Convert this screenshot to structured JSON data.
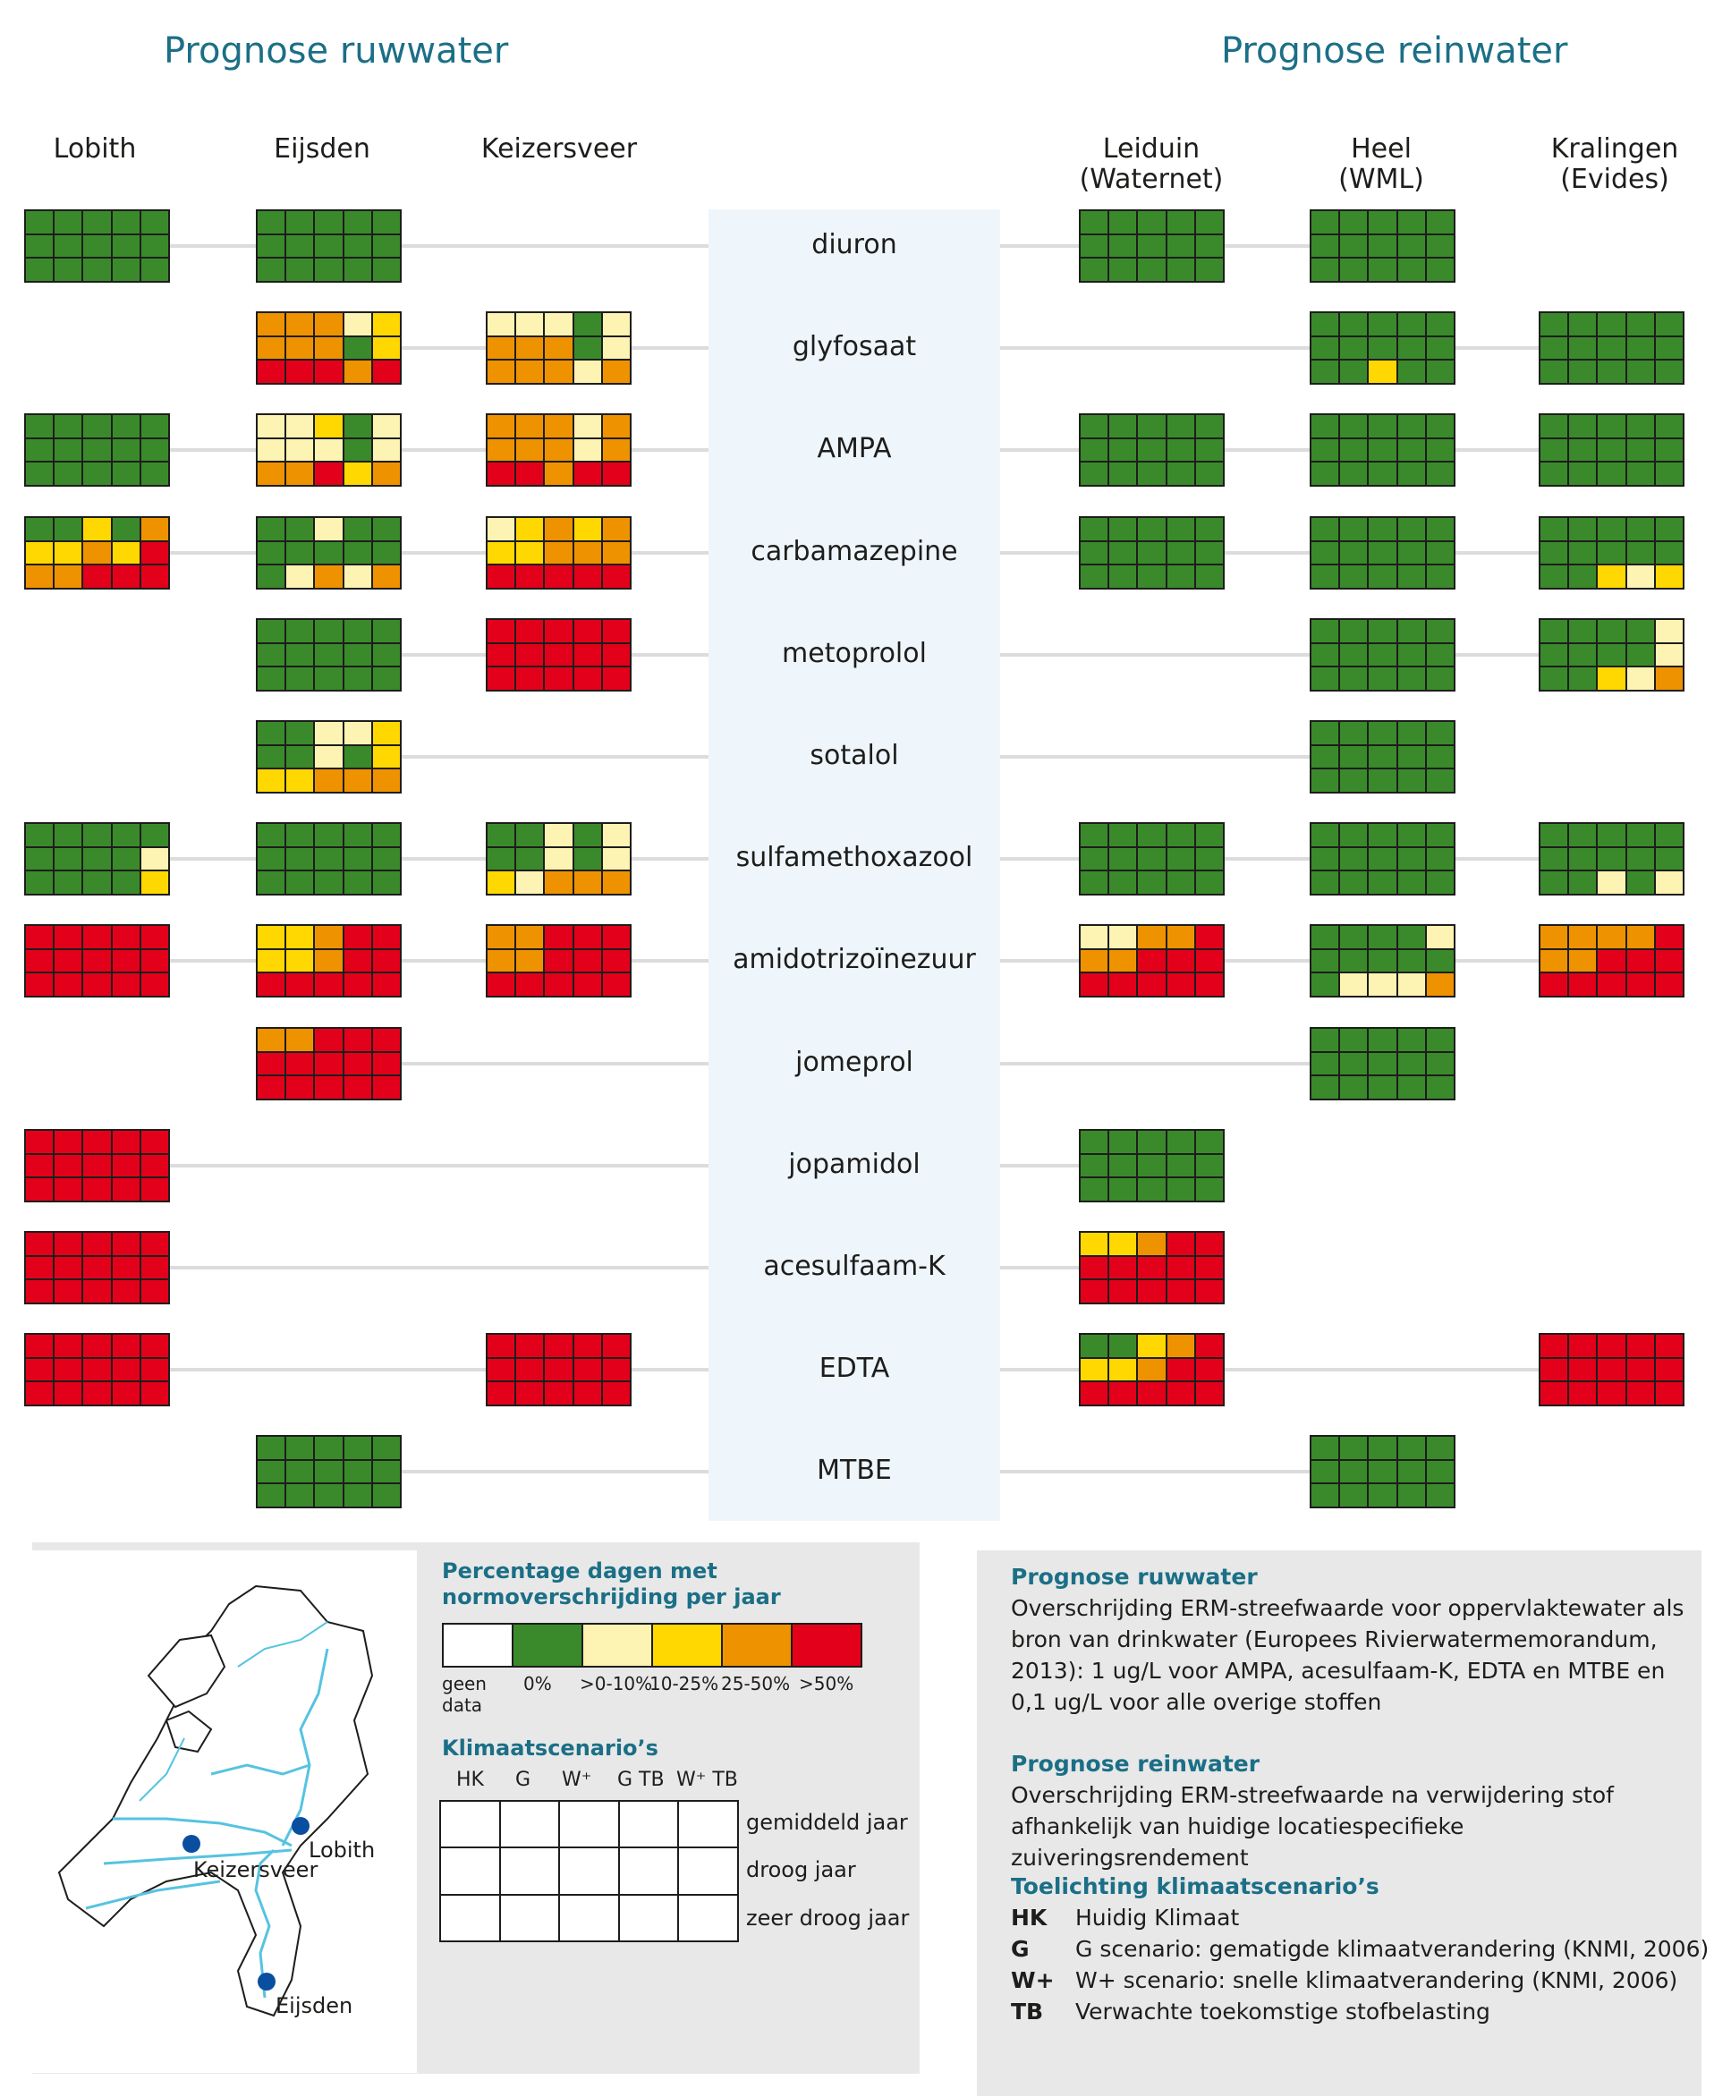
{
  "headers": {
    "ruwwater": "Prognose ruwwater",
    "reinwater": "Prognose reinwater"
  },
  "locations": {
    "lobith": [
      "Lobith"
    ],
    "eijsden": [
      "Eijsden"
    ],
    "keizersveer": [
      "Keizersveer"
    ],
    "leiduin": [
      "Leiduin",
      "(Waternet)"
    ],
    "heel": [
      "Heel",
      "(WML)"
    ],
    "kralingen": [
      "Kralingen",
      "(Evides)"
    ]
  },
  "colors": {
    "W": "#ffffff",
    "G": "#3a8a2c",
    "L": "#fdf3b3",
    "Y": "#fed800",
    "O": "#ef9200",
    "R": "#e3001b"
  },
  "chart_data": {
    "type": "heatmap",
    "rows": [
      "diuron",
      "glyfosaat",
      "AMPA",
      "carbamazepine",
      "metoprolol",
      "sotalol",
      "sulfamethoxazool",
      "amidotrizoïnezuur",
      "jomeprol",
      "jopamidol",
      "acesulfaam-K",
      "EDTA",
      "MTBE"
    ],
    "grid_columns": [
      "HK",
      "G",
      "W⁺",
      "G TB",
      "W⁺ TB"
    ],
    "grid_rows": [
      "gemiddeld jaar",
      "droog jaar",
      "zeer droog jaar"
    ],
    "categories": {
      "W": "geen data",
      "G": "0%",
      "L": ">0-10%",
      "Y": "10-25%",
      "O": "25-50%",
      "R": ">50%"
    },
    "locations": [
      "Lobith",
      "Eijsden",
      "Keizersveer",
      "Leiduin (Waternet)",
      "Heel (WML)",
      "Kralingen (Evides)"
    ],
    "grids": {
      "diuron": {
        "Lobith": [
          "GGGGG",
          "GGGGG",
          "GGGGG"
        ],
        "Eijsden": [
          "GGGGG",
          "GGGGG",
          "GGGGG"
        ],
        "Leiduin": [
          "GGGGG",
          "GGGGG",
          "GGGGG"
        ],
        "Heel": [
          "GGGGG",
          "GGGGG",
          "GGGGG"
        ]
      },
      "glyfosaat": {
        "Eijsden": [
          "OOOLY",
          "OOOGY",
          "RRROR"
        ],
        "Keizersveer": [
          "LLLGL",
          "OOOGL",
          "OOOLO"
        ],
        "Heel": [
          "GGGGG",
          "GGGGG",
          "GGYGG"
        ],
        "Kralingen": [
          "GGGGG",
          "GGGGG",
          "GGGGG"
        ]
      },
      "AMPA": {
        "Lobith": [
          "GGGGG",
          "GGGGG",
          "GGGGG"
        ],
        "Eijsden": [
          "LLYGL",
          "LLLGL",
          "OORYO"
        ],
        "Keizersveer": [
          "OOOLO",
          "OOOLO",
          "RRORR"
        ],
        "Leiduin": [
          "GGGGG",
          "GGGGG",
          "GGGGG"
        ],
        "Heel": [
          "GGGGG",
          "GGGGG",
          "GGGGG"
        ],
        "Kralingen": [
          "GGGGG",
          "GGGGG",
          "GGGGG"
        ]
      },
      "carbamazepine": {
        "Lobith": [
          "GGYGO",
          "YYOYR",
          "OORRR"
        ],
        "Eijsden": [
          "GGLGG",
          "GGGGG",
          "GLOLO"
        ],
        "Keizersveer": [
          "LYOYO",
          "YYOOO",
          "RRRRR"
        ],
        "Leiduin": [
          "GGGGG",
          "GGGGG",
          "GGGGG"
        ],
        "Heel": [
          "GGGGG",
          "GGGGG",
          "GGGGG"
        ],
        "Kralingen": [
          "GGGGG",
          "GGGGG",
          "GGYLY"
        ]
      },
      "metoprolol": {
        "Eijsden": [
          "GGGGG",
          "GGGGG",
          "GGGGG"
        ],
        "Keizersveer": [
          "RRRRR",
          "RRRRR",
          "RRRRR"
        ],
        "Heel": [
          "GGGGG",
          "GGGGG",
          "GGGGG"
        ],
        "Kralingen": [
          "GGGGL",
          "GGGGL",
          "GGYLO"
        ]
      },
      "sotalol": {
        "Eijsden": [
          "GGLLY",
          "GGLGY",
          "YYOOO"
        ],
        "Heel": [
          "GGGGG",
          "GGGGG",
          "GGGGG"
        ]
      },
      "sulfamethoxazool": {
        "Lobith": [
          "GGGGG",
          "GGGGL",
          "GGGGY"
        ],
        "Eijsden": [
          "GGGGG",
          "GGGGG",
          "GGGGG"
        ],
        "Keizersveer": [
          "GGLGL",
          "GGLGL",
          "YLOOO"
        ],
        "Leiduin": [
          "GGGGG",
          "GGGGG",
          "GGGGG"
        ],
        "Heel": [
          "GGGGG",
          "GGGGG",
          "GGGGG"
        ],
        "Kralingen": [
          "GGGGG",
          "GGGGG",
          "GGLGL"
        ]
      },
      "amidotrizoïnezuur": {
        "Lobith": [
          "RRRRR",
          "RRRRR",
          "RRRRR"
        ],
        "Eijsden": [
          "YYORR",
          "YYORR",
          "RRRRR"
        ],
        "Keizersveer": [
          "OORRR",
          "OORRR",
          "RRRRR"
        ],
        "Leiduin": [
          "LLOOR",
          "OORRR",
          "RRRRR"
        ],
        "Heel": [
          "GGGGL",
          "GGGGG",
          "GLLLO"
        ],
        "Kralingen": [
          "OOOOR",
          "OORRR",
          "RRRRR"
        ]
      },
      "jomeprol": {
        "Eijsden": [
          "OORRR",
          "RRRRR",
          "RRRRR"
        ],
        "Heel": [
          "GGGGG",
          "GGGGG",
          "GGGGG"
        ]
      },
      "jopamidol": {
        "Lobith": [
          "RRRRR",
          "RRRRR",
          "RRRRR"
        ],
        "Leiduin": [
          "GGGGG",
          "GGGGG",
          "GGGGG"
        ]
      },
      "acesulfaam-K": {
        "Lobith": [
          "RRRRR",
          "RRRRR",
          "RRRRR"
        ],
        "Leiduin": [
          "YYORR",
          "RRRRR",
          "RRRRR"
        ]
      },
      "EDTA": {
        "Lobith": [
          "RRRRR",
          "RRRRR",
          "RRRRR"
        ],
        "Keizersveer": [
          "RRRRR",
          "RRRRR",
          "RRRRR"
        ],
        "Leiduin": [
          "GGYOR",
          "YYORR",
          "RRRRR"
        ],
        "Kralingen": [
          "RRRRR",
          "RRRRR",
          "RRRRR"
        ]
      },
      "MTBE": {
        "Eijsden": [
          "GGGGG",
          "GGGGG",
          "GGGGG"
        ],
        "Heel": [
          "GGGGG",
          "GGGGG",
          "GGGGG"
        ]
      }
    }
  },
  "legend": {
    "title": [
      "Percentage dagen met",
      "normoverschrijding per jaar"
    ],
    "labels": [
      "geen\ndata",
      "0%",
      ">0-10%",
      "10-25%",
      "25-50%",
      ">50%"
    ],
    "scenario_title": "Klimaatscenario’s",
    "scenario_cols": [
      "HK",
      "G",
      "W⁺",
      "G TB",
      "W⁺ TB"
    ],
    "scenario_rows": [
      "gemiddeld jaar",
      "droog jaar",
      "zeer droog jaar"
    ]
  },
  "map": {
    "labels": [
      "Lobith",
      "Keizersveer",
      "Eijsden"
    ]
  },
  "info": {
    "ruw_title": "Prognose ruwwater",
    "ruw_text": "Overschrijding  ERM-streefwaarde voor oppervlaktewater als bron van drinkwater (Europees Rivierwatermemorandum, 2013): 1 ug/L voor AMPA, acesulfaam-K, EDTA en MTBE en 0,1 ug/L voor alle overige stoffen",
    "rein_title": "Prognose reinwater",
    "rein_text": "Overschrijding  ERM-streefwaarde na verwijdering stof afhankelijk van huidige locatiespecifieke zuiveringsrendement",
    "toel_title": "Toelichting klimaatscenario’s",
    "defs": [
      {
        "k": "HK",
        "v": "Huidig Klimaat"
      },
      {
        "k": "G",
        "v": "G scenario: gematigde klimaatverandering (KNMI, 2006)"
      },
      {
        "k": "W+",
        "v": "W+ scenario: snelle klimaatverandering (KNMI, 2006)"
      },
      {
        "k": "TB",
        "v": "Verwachte toekomstige stofbelasting"
      }
    ]
  }
}
